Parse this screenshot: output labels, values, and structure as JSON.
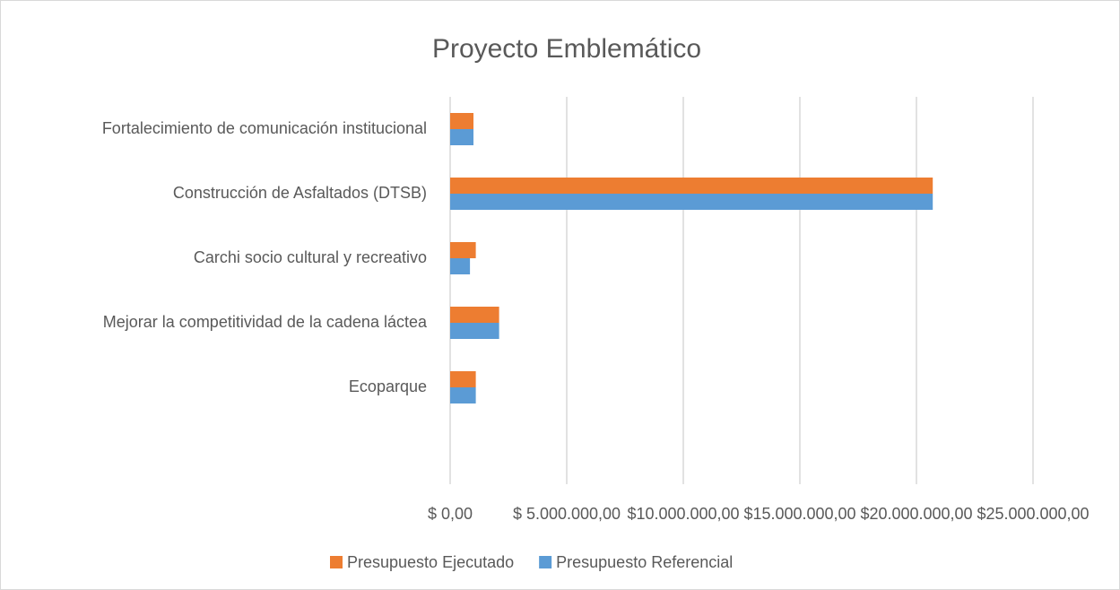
{
  "chart_data": {
    "type": "hbar",
    "title": "Proyecto Emblemático",
    "categories": [
      "Fortalecimiento de comunicación institucional",
      "Construcción de Asfaltados (DTSB)",
      "Carchi socio cultural y recreativo",
      "Mejorar la competitividad de la cadena láctea",
      "Ecoparque",
      null
    ],
    "series": [
      {
        "name": "Presupuesto Ejecutado",
        "color": "#ed7d31",
        "values": [
          1000000,
          20700000,
          1100000,
          2100000,
          1100000,
          null
        ]
      },
      {
        "name": "Presupuesto Referencial",
        "color": "#5b9bd5",
        "values": [
          1000000,
          20700000,
          850000,
          2100000,
          1100000,
          null
        ]
      }
    ],
    "xlim": [
      0,
      25000000
    ],
    "xticks": [
      {
        "value": 0,
        "label": "$ 0,00"
      },
      {
        "value": 5000000,
        "label": "$ 5.000.000,00"
      },
      {
        "value": 10000000,
        "label": "$10.000.000,00"
      },
      {
        "value": 15000000,
        "label": "$15.000.000,00"
      },
      {
        "value": 20000000,
        "label": "$20.000.000,00"
      },
      {
        "value": 25000000,
        "label": "$25.000.000,00"
      }
    ],
    "grid": true,
    "legend": "bottom"
  }
}
